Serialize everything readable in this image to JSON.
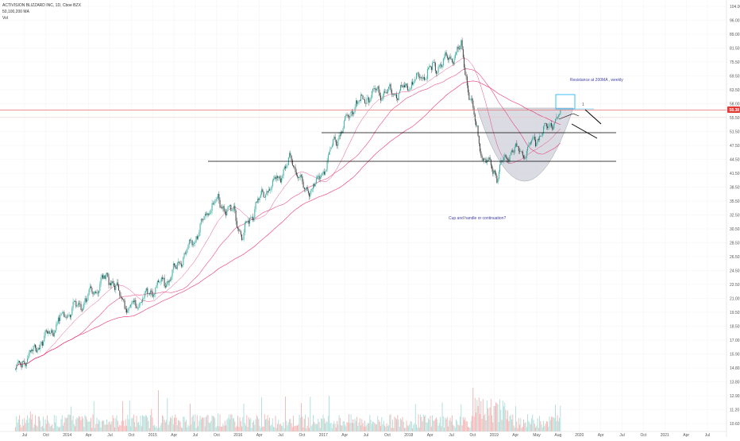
{
  "header": {
    "symbol_line": "ACTIVISION BLIZZARD INC, 1D, Cboe BZX",
    "ma_line": "50,100,200 MA",
    "vol_line": "Vol"
  },
  "price_badge": {
    "value": "58.38",
    "color": "#e53935"
  },
  "colors": {
    "up": "#26a69a",
    "down": "#2e2e2e",
    "ma": "#e91e63",
    "resistance": "#e57373",
    "box": "#29b6f6",
    "cup_fill": "#d5d5df",
    "trendline": "#000000"
  },
  "annotations": {
    "resistance_note": "Resistance at 200MA , weekly",
    "cup_note": "Cup and handle or continuation?",
    "box_label": "1"
  },
  "chart_data": {
    "type": "candlestick",
    "y_ticks": [
      "104.00",
      "96.00",
      "89.00",
      "81.50",
      "75.50",
      "69.50",
      "63.50",
      "58.00",
      "55.50",
      "51.50",
      "47.50",
      "44.50",
      "41.50",
      "38.50",
      "35.50",
      "32.50",
      "30.50",
      "28.50",
      "26.50",
      "24.50",
      "22.50",
      "21.00",
      "19.50",
      "18.50",
      "17.00",
      "15.90",
      "14.80",
      "13.80",
      "12.90",
      "11.20",
      "10.60"
    ],
    "x_ticks": [
      "Jul",
      "Oct",
      "2014",
      "Apr",
      "Jul",
      "Oct",
      "2015",
      "Apr",
      "Jul",
      "Oct",
      "2016",
      "Apr",
      "Jul",
      "Oct",
      "2017",
      "Apr",
      "Jul",
      "Oct",
      "2018",
      "Apr",
      "Jul",
      "Oct",
      "2019",
      "Apr",
      "May",
      "Aug",
      "2020",
      "Apr",
      "Jul",
      "Oct",
      "2021",
      "Apr",
      "Jul"
    ],
    "price_path": [
      {
        "t": "2013-06",
        "p": 14.0
      },
      {
        "t": "2013-10",
        "p": 16.5
      },
      {
        "t": "2014-01",
        "p": 19.0
      },
      {
        "t": "2014-04",
        "p": 20.5
      },
      {
        "t": "2014-07",
        "p": 23.5
      },
      {
        "t": "2014-10",
        "p": 19.5
      },
      {
        "t": "2015-01",
        "p": 21.5
      },
      {
        "t": "2015-04",
        "p": 23.5
      },
      {
        "t": "2015-07",
        "p": 28.0
      },
      {
        "t": "2015-10",
        "p": 35.5
      },
      {
        "t": "2016-01",
        "p": 33.0
      },
      {
        "t": "2016-02",
        "p": 29.0
      },
      {
        "t": "2016-04",
        "p": 35.0
      },
      {
        "t": "2016-07",
        "p": 40.0
      },
      {
        "t": "2016-09",
        "p": 44.5
      },
      {
        "t": "2016-11",
        "p": 37.0
      },
      {
        "t": "2017-01",
        "p": 40.0
      },
      {
        "t": "2017-03",
        "p": 49.0
      },
      {
        "t": "2017-06",
        "p": 60.0
      },
      {
        "t": "2017-09",
        "p": 65.0
      },
      {
        "t": "2017-12",
        "p": 64.0
      },
      {
        "t": "2018-03",
        "p": 70.0
      },
      {
        "t": "2018-06",
        "p": 75.0
      },
      {
        "t": "2018-09",
        "p": 82.0
      },
      {
        "t": "2018-10",
        "p": 65.0
      },
      {
        "t": "2018-12",
        "p": 45.0
      },
      {
        "t": "2019-02",
        "p": 41.0
      },
      {
        "t": "2019-04",
        "p": 47.0
      },
      {
        "t": "2019-06",
        "p": 46.0
      },
      {
        "t": "2019-08",
        "p": 51.0
      },
      {
        "t": "2019-10",
        "p": 55.5
      },
      {
        "t": "2019-11",
        "p": 56.5
      }
    ],
    "resistance_level": 58.38,
    "horizontal_levels": [
      51.5,
      44.0
    ],
    "axis_position": "right"
  }
}
